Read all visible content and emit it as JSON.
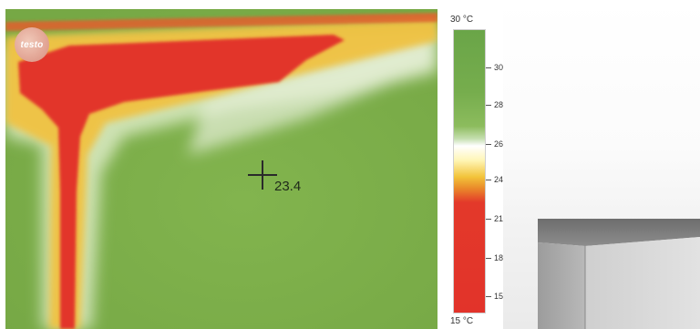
{
  "logo": {
    "text": "testo"
  },
  "measurement": {
    "value": "23.4"
  },
  "scale": {
    "max_label": "30 °C",
    "min_label": "15 °C",
    "ticks": [
      {
        "label": "30,0",
        "value": 30.0
      },
      {
        "label": "28,0",
        "value": 28.0
      },
      {
        "label": "26,0",
        "value": 26.0
      },
      {
        "label": "24,0",
        "value": 24.0
      },
      {
        "label": "21,0",
        "value": 21.0
      },
      {
        "label": "18,0",
        "value": 18.0
      },
      {
        "label": "15,0",
        "value": 15.0
      }
    ]
  },
  "colors": {
    "cold": "#e2332a",
    "mid_cold": "#f2c33a",
    "neutral": "#ffffff",
    "warm": "#7dae4a"
  }
}
